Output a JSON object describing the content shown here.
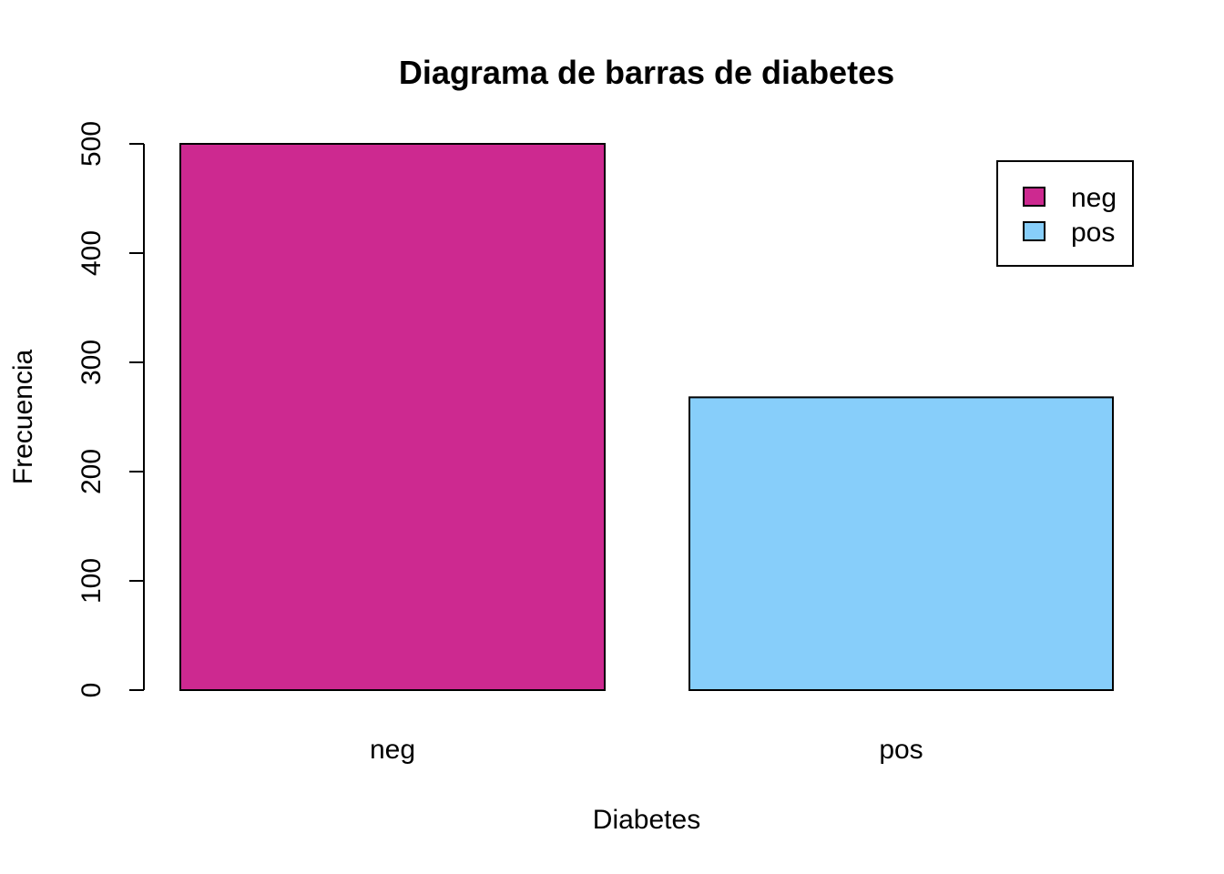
{
  "chart_data": {
    "type": "bar",
    "title": "Diagrama de barras de diabetes",
    "xlabel": "Diabetes",
    "ylabel": "Frecuencia",
    "categories": [
      "neg",
      "pos"
    ],
    "values": [
      500,
      268
    ],
    "colors": [
      "#CD2990",
      "#87CEFA"
    ],
    "ylim": [
      0,
      500
    ],
    "yticks": [
      0,
      100,
      200,
      300,
      400,
      500
    ],
    "grid": false,
    "legend": {
      "position": "top-right",
      "entries": [
        {
          "label": "neg",
          "color": "#CD2990"
        },
        {
          "label": "pos",
          "color": "#87CEFA"
        }
      ]
    }
  }
}
